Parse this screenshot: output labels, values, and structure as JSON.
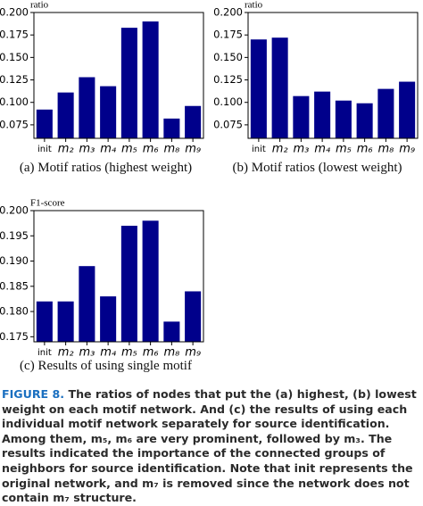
{
  "chart_data": [
    {
      "type": "bar",
      "ylabel": "ratio",
      "subcaption": "(a) Motif ratios (highest weight)",
      "categories": [
        "init",
        "m₂",
        "m₃",
        "m₄",
        "m₅",
        "m₆",
        "m₈",
        "m₉"
      ],
      "values": [
        0.092,
        0.111,
        0.128,
        0.118,
        0.183,
        0.19,
        0.082,
        0.096
      ],
      "color": "#00008b",
      "ylim": [
        0.06,
        0.2
      ],
      "yticks": [
        0.075,
        {
          "value": 0.1,
          "label": "0.100"
        },
        0.125,
        {
          "value": 0.15,
          "label": "0.150"
        },
        0.175,
        {
          "value": 0.2,
          "label": "0.200"
        }
      ]
    },
    {
      "type": "bar",
      "ylabel": "ratio",
      "subcaption": "(b) Motif ratios (lowest weight)",
      "categories": [
        "init",
        "m₂",
        "m₃",
        "m₄",
        "m₅",
        "m₆",
        "m₈",
        "m₉"
      ],
      "values": [
        0.17,
        0.172,
        0.107,
        0.112,
        0.102,
        0.099,
        0.115,
        0.123
      ],
      "color": "#00008b",
      "ylim": [
        0.06,
        0.2
      ],
      "yticks": [
        0.075,
        {
          "value": 0.1,
          "label": "0.100"
        },
        0.125,
        {
          "value": 0.15,
          "label": "0.150"
        },
        0.175,
        {
          "value": 0.2,
          "label": "0.200"
        }
      ]
    },
    {
      "type": "bar",
      "ylabel": "F1-score",
      "subcaption": "(c) Results of using single motif",
      "categories": [
        "init",
        "m₂",
        "m₃",
        "m₄",
        "m₅",
        "m₆",
        "m₈",
        "m₉"
      ],
      "values": [
        0.182,
        0.182,
        0.189,
        0.183,
        0.197,
        0.198,
        0.178,
        0.184
      ],
      "color": "#00008b",
      "ylim": [
        0.174,
        0.2
      ],
      "yticks": [
        0.175,
        {
          "value": 0.18,
          "label": "0.180"
        },
        0.185,
        {
          "value": 0.19,
          "label": "0.190"
        },
        0.195,
        {
          "value": 0.2,
          "label": "0.200"
        }
      ]
    }
  ],
  "caption": {
    "label": "FIGURE 8.",
    "text": "The ratios of nodes that put the (a) highest, (b) lowest weight on each motif network. And (c) the results of using each individual motif network separately for source identification. Among them, m₅, m₆ are very prominent, followed by m₃. The results indicated the importance of the connected groups of neighbors for source identification. Note that init represents the original network, and m₇ is removed since the network does not contain m₇ structure."
  }
}
